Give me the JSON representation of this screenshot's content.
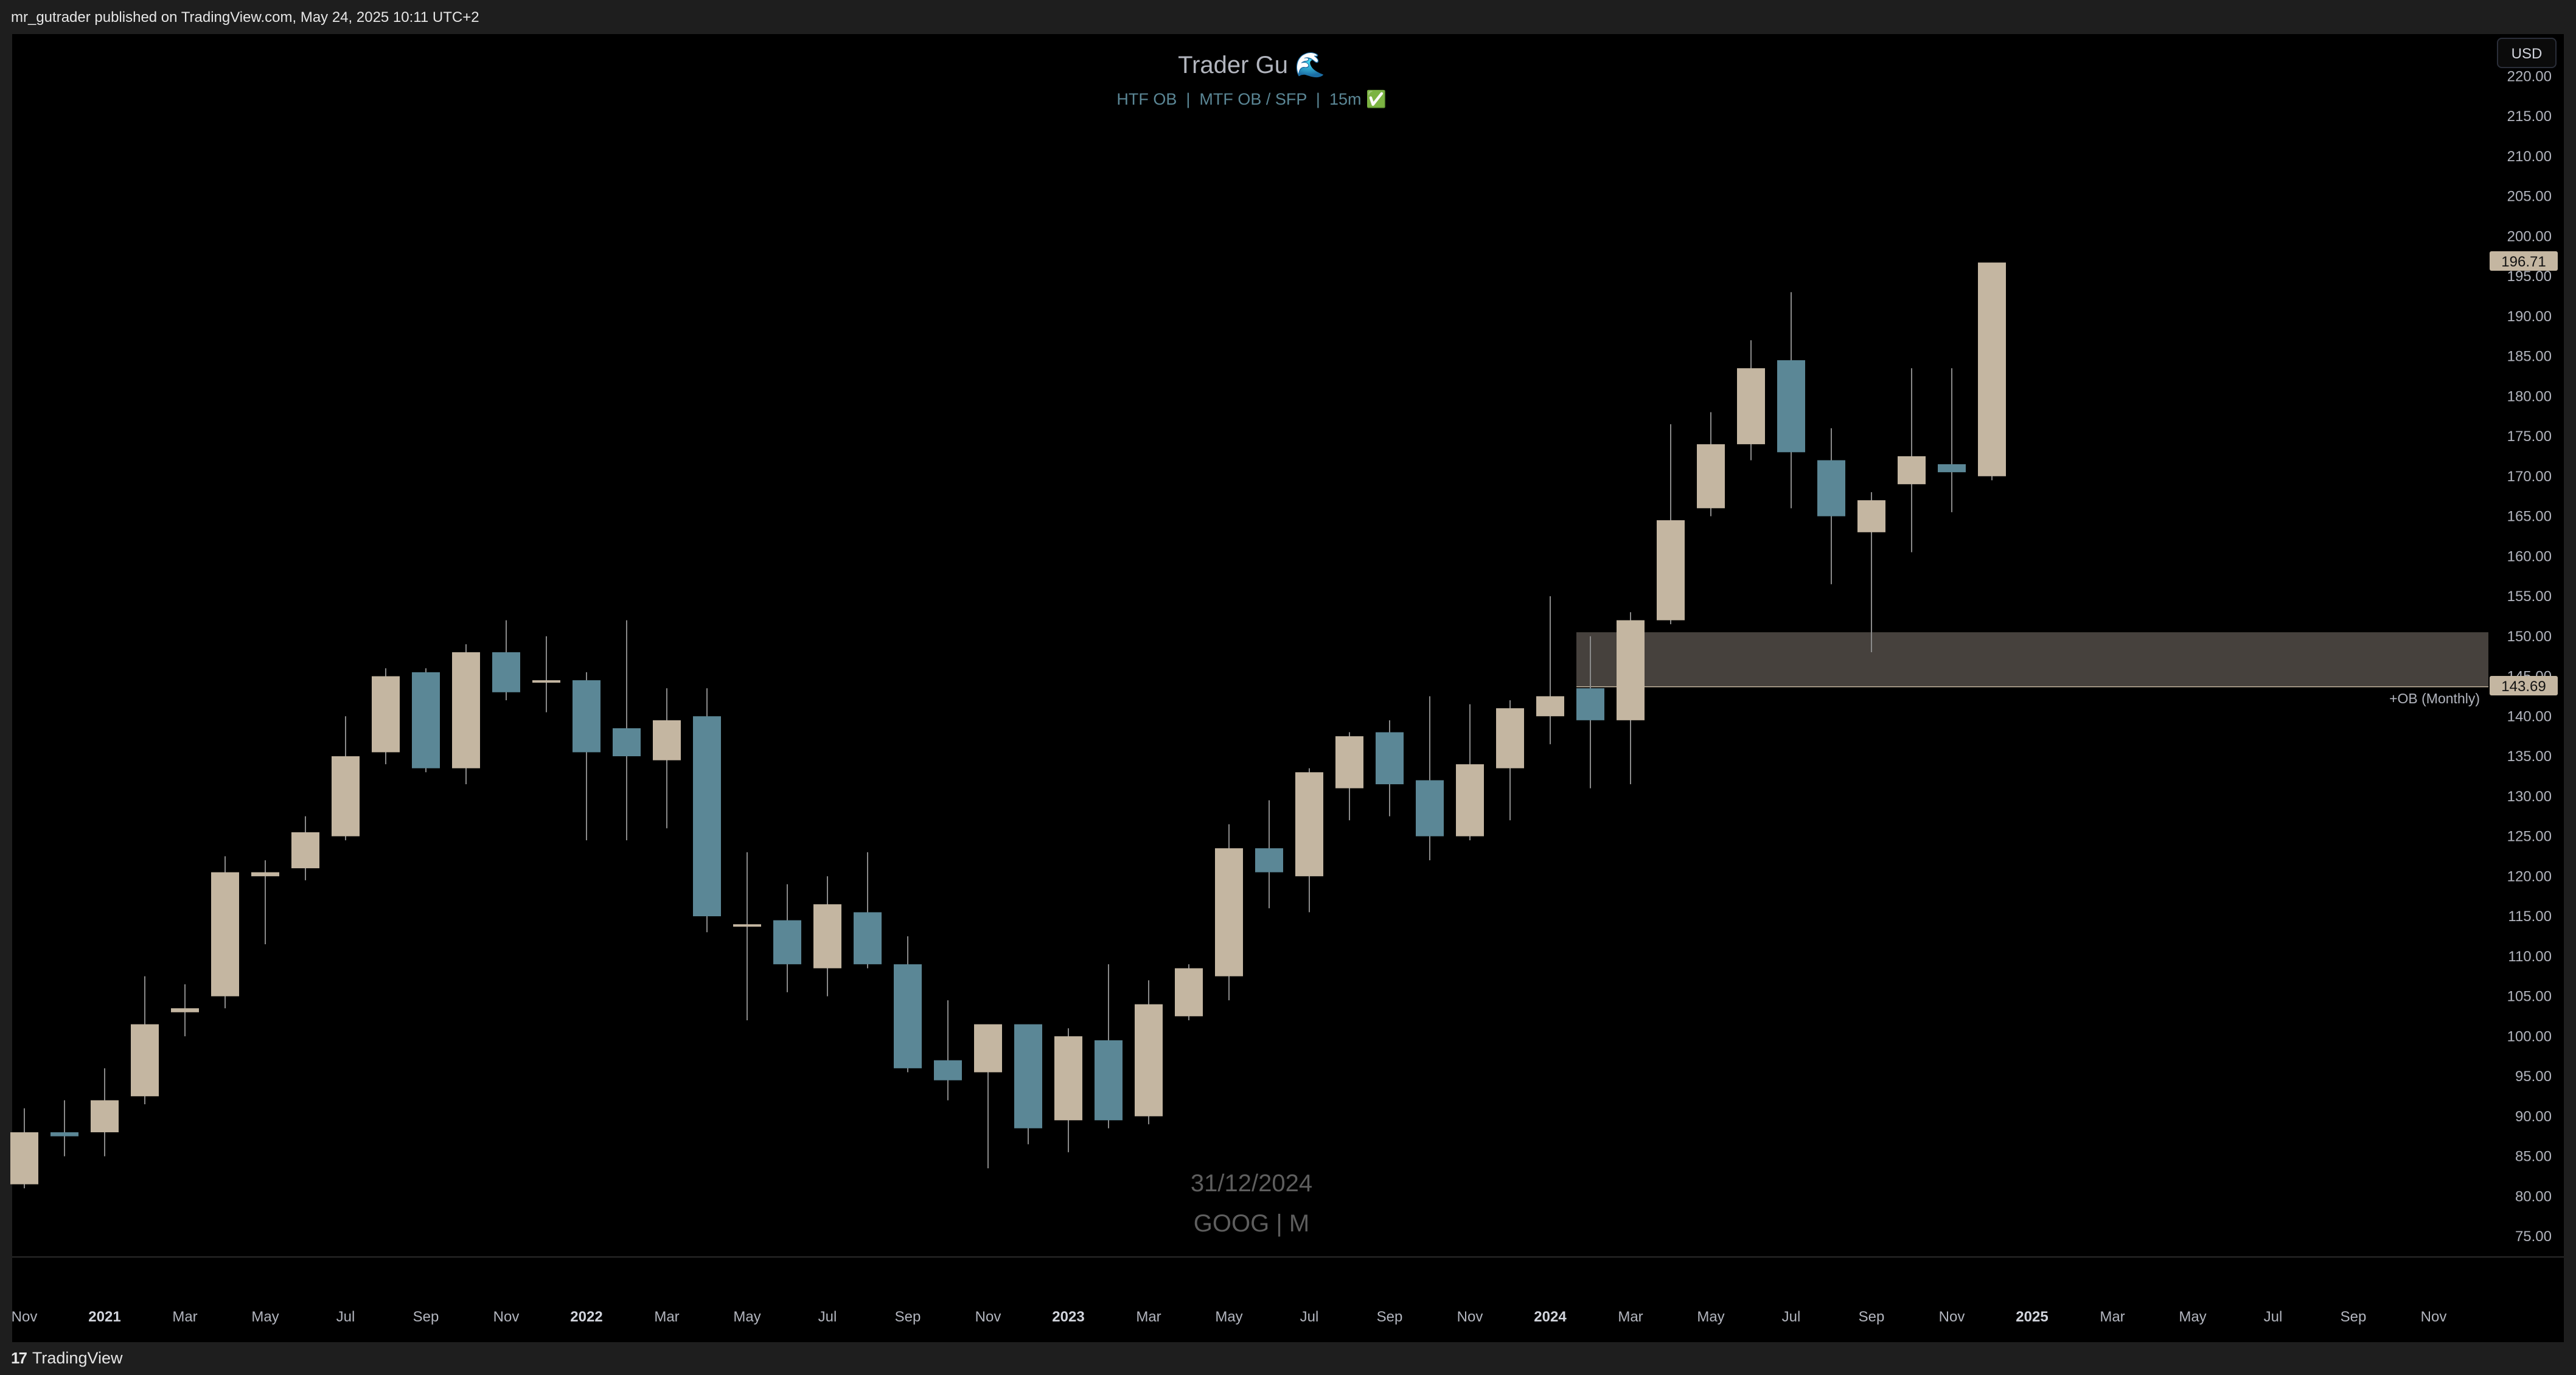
{
  "header": {
    "publisher_line": "mr_gutrader published on TradingView.com, May 24, 2025 10:11 UTC+2"
  },
  "footer": {
    "brand": "TradingView",
    "brand_mark": "17"
  },
  "toolbar": {
    "currency": "USD"
  },
  "colors": {
    "bull": "#c4b6a1",
    "bear": "#5b8796",
    "wick": "#8a8a8a",
    "ob_zone": "#4a4540",
    "background": "#000000",
    "axis_text": "#b2b5be"
  },
  "chart_data": {
    "type": "candlestick",
    "title": "Trader Gu 🌊",
    "subtitle": "HTF OB  |  MTF OB / SFP  |  15m ✅",
    "watermark_date": "31/12/2024",
    "watermark_symbol": "GOOG | M",
    "ylim": [
      71,
      222
    ],
    "y_ticks": [
      "75.00",
      "80.00",
      "85.00",
      "90.00",
      "95.00",
      "100.00",
      "105.00",
      "110.00",
      "115.00",
      "120.00",
      "125.00",
      "130.00",
      "135.00",
      "140.00",
      "145.00",
      "150.00",
      "155.00",
      "160.00",
      "165.00",
      "170.00",
      "175.00",
      "180.00",
      "185.00",
      "190.00",
      "195.00",
      "200.00",
      "205.00",
      "210.00",
      "215.00",
      "220.00"
    ],
    "x_ticks": [
      {
        "label": "Nov",
        "i": 0,
        "bold": false
      },
      {
        "label": "2021",
        "i": 2,
        "bold": true
      },
      {
        "label": "Mar",
        "i": 4,
        "bold": false
      },
      {
        "label": "May",
        "i": 6,
        "bold": false
      },
      {
        "label": "Jul",
        "i": 8,
        "bold": false
      },
      {
        "label": "Sep",
        "i": 10,
        "bold": false
      },
      {
        "label": "Nov",
        "i": 12,
        "bold": false
      },
      {
        "label": "2022",
        "i": 14,
        "bold": true
      },
      {
        "label": "Mar",
        "i": 16,
        "bold": false
      },
      {
        "label": "May",
        "i": 18,
        "bold": false
      },
      {
        "label": "Jul",
        "i": 20,
        "bold": false
      },
      {
        "label": "Sep",
        "i": 22,
        "bold": false
      },
      {
        "label": "Nov",
        "i": 24,
        "bold": false
      },
      {
        "label": "2023",
        "i": 26,
        "bold": true
      },
      {
        "label": "Mar",
        "i": 28,
        "bold": false
      },
      {
        "label": "May",
        "i": 30,
        "bold": false
      },
      {
        "label": "Jul",
        "i": 32,
        "bold": false
      },
      {
        "label": "Sep",
        "i": 34,
        "bold": false
      },
      {
        "label": "Nov",
        "i": 36,
        "bold": false
      },
      {
        "label": "2024",
        "i": 38,
        "bold": true
      },
      {
        "label": "Mar",
        "i": 40,
        "bold": false
      },
      {
        "label": "May",
        "i": 42,
        "bold": false
      },
      {
        "label": "Jul",
        "i": 44,
        "bold": false
      },
      {
        "label": "Sep",
        "i": 46,
        "bold": false
      },
      {
        "label": "Nov",
        "i": 48,
        "bold": false
      },
      {
        "label": "2025",
        "i": 50,
        "bold": true
      },
      {
        "label": "Mar",
        "i": 52,
        "bold": false
      },
      {
        "label": "May",
        "i": 54,
        "bold": false
      },
      {
        "label": "Jul",
        "i": 56,
        "bold": false
      },
      {
        "label": "Sep",
        "i": 58,
        "bold": false
      },
      {
        "label": "Nov",
        "i": 60,
        "bold": false
      }
    ],
    "candles": [
      {
        "d": "2020-11",
        "o": 81.5,
        "h": 91,
        "l": 81,
        "c": 88
      },
      {
        "d": "2020-12",
        "o": 88,
        "h": 92,
        "l": 85,
        "c": 87.5
      },
      {
        "d": "2021-01",
        "o": 88,
        "h": 96,
        "l": 85,
        "c": 92
      },
      {
        "d": "2021-02",
        "o": 92.5,
        "h": 107.5,
        "l": 91.5,
        "c": 101.5
      },
      {
        "d": "2021-03",
        "o": 103,
        "h": 106.5,
        "l": 100,
        "c": 103.5
      },
      {
        "d": "2021-04",
        "o": 105,
        "h": 122.5,
        "l": 103.5,
        "c": 120.5
      },
      {
        "d": "2021-05",
        "o": 120,
        "h": 122,
        "l": 111.5,
        "c": 120.5
      },
      {
        "d": "2021-06",
        "o": 121,
        "h": 127.5,
        "l": 119.5,
        "c": 125.5
      },
      {
        "d": "2021-07",
        "o": 125,
        "h": 140,
        "l": 124.5,
        "c": 135
      },
      {
        "d": "2021-08",
        "o": 135.5,
        "h": 146,
        "l": 134,
        "c": 145
      },
      {
        "d": "2021-09",
        "o": 145.5,
        "h": 146,
        "l": 133,
        "c": 133.5
      },
      {
        "d": "2021-10",
        "o": 133.5,
        "h": 149,
        "l": 131.5,
        "c": 148
      },
      {
        "d": "2021-11",
        "o": 148,
        "h": 152,
        "l": 142,
        "c": 143
      },
      {
        "d": "2021-12",
        "o": 144.5,
        "h": 150,
        "l": 140.5,
        "c": 144.5
      },
      {
        "d": "2022-01",
        "o": 144.5,
        "h": 145.5,
        "l": 124.5,
        "c": 135.5
      },
      {
        "d": "2022-02",
        "o": 138.5,
        "h": 152,
        "l": 124.5,
        "c": 135
      },
      {
        "d": "2022-03",
        "o": 134.5,
        "h": 143.5,
        "l": 126,
        "c": 139.5
      },
      {
        "d": "2022-04",
        "o": 140,
        "h": 143.5,
        "l": 113,
        "c": 115
      },
      {
        "d": "2022-05",
        "o": 114,
        "h": 123,
        "l": 102,
        "c": 114
      },
      {
        "d": "2022-06",
        "o": 114.5,
        "h": 119,
        "l": 105.5,
        "c": 109
      },
      {
        "d": "2022-07",
        "o": 108.5,
        "h": 120,
        "l": 105,
        "c": 116.5
      },
      {
        "d": "2022-08",
        "o": 115.5,
        "h": 123,
        "l": 108.5,
        "c": 109
      },
      {
        "d": "2022-09",
        "o": 109,
        "h": 112.5,
        "l": 95.5,
        "c": 96
      },
      {
        "d": "2022-10",
        "o": 97,
        "h": 104.5,
        "l": 92,
        "c": 94.5
      },
      {
        "d": "2022-11",
        "o": 95.5,
        "h": 101.5,
        "l": 83.5,
        "c": 101.5
      },
      {
        "d": "2022-12",
        "o": 101.5,
        "h": 101.5,
        "l": 86.5,
        "c": 88.5
      },
      {
        "d": "2023-01",
        "o": 89.5,
        "h": 101,
        "l": 85.5,
        "c": 100
      },
      {
        "d": "2023-02",
        "o": 99.5,
        "h": 109,
        "l": 88.5,
        "c": 89.5
      },
      {
        "d": "2023-03",
        "o": 90,
        "h": 107,
        "l": 89,
        "c": 104
      },
      {
        "d": "2023-04",
        "o": 102.5,
        "h": 109,
        "l": 102,
        "c": 108.5
      },
      {
        "d": "2023-05",
        "o": 107.5,
        "h": 126.5,
        "l": 104.5,
        "c": 123.5
      },
      {
        "d": "2023-06",
        "o": 123.5,
        "h": 129.5,
        "l": 116,
        "c": 120.5
      },
      {
        "d": "2023-07",
        "o": 120,
        "h": 133.5,
        "l": 115.5,
        "c": 133
      },
      {
        "d": "2023-08",
        "o": 131,
        "h": 138,
        "l": 127,
        "c": 137.5
      },
      {
        "d": "2023-09",
        "o": 138,
        "h": 139.5,
        "l": 127.5,
        "c": 131.5
      },
      {
        "d": "2023-10",
        "o": 132,
        "h": 142.5,
        "l": 122,
        "c": 125
      },
      {
        "d": "2023-11",
        "o": 125,
        "h": 141.5,
        "l": 124.5,
        "c": 134
      },
      {
        "d": "2023-12",
        "o": 133.5,
        "h": 142,
        "l": 127,
        "c": 141
      },
      {
        "d": "2024-01",
        "o": 140,
        "h": 155,
        "l": 136.5,
        "c": 142.5
      },
      {
        "d": "2024-02",
        "o": 143.5,
        "h": 150,
        "l": 131,
        "c": 139.5
      },
      {
        "d": "2024-03",
        "o": 139.5,
        "h": 153,
        "l": 131.5,
        "c": 152
      },
      {
        "d": "2024-04",
        "o": 152,
        "h": 176.5,
        "l": 151.5,
        "c": 164.5
      },
      {
        "d": "2024-05",
        "o": 166,
        "h": 178,
        "l": 165,
        "c": 174
      },
      {
        "d": "2024-06",
        "o": 174,
        "h": 187,
        "l": 172,
        "c": 183.5
      },
      {
        "d": "2024-07",
        "o": 184.5,
        "h": 193,
        "l": 166,
        "c": 173
      },
      {
        "d": "2024-08",
        "o": 172,
        "h": 176,
        "l": 156.5,
        "c": 165
      },
      {
        "d": "2024-09",
        "o": 163,
        "h": 168,
        "l": 148,
        "c": 167
      },
      {
        "d": "2024-10",
        "o": 169,
        "h": 183.5,
        "l": 160.5,
        "c": 172.5
      },
      {
        "d": "2024-11",
        "o": 171.5,
        "h": 183.5,
        "l": 165.5,
        "c": 170.5
      },
      {
        "d": "2024-12",
        "o": 170,
        "h": 196.71,
        "l": 169.5,
        "c": 196.71
      }
    ],
    "ob_zone": {
      "label": "+OB (Monthly)",
      "top": 150.5,
      "bottom": 143.69,
      "start_index": 39
    },
    "last_price": "196.71",
    "ob_price": "143.69"
  }
}
